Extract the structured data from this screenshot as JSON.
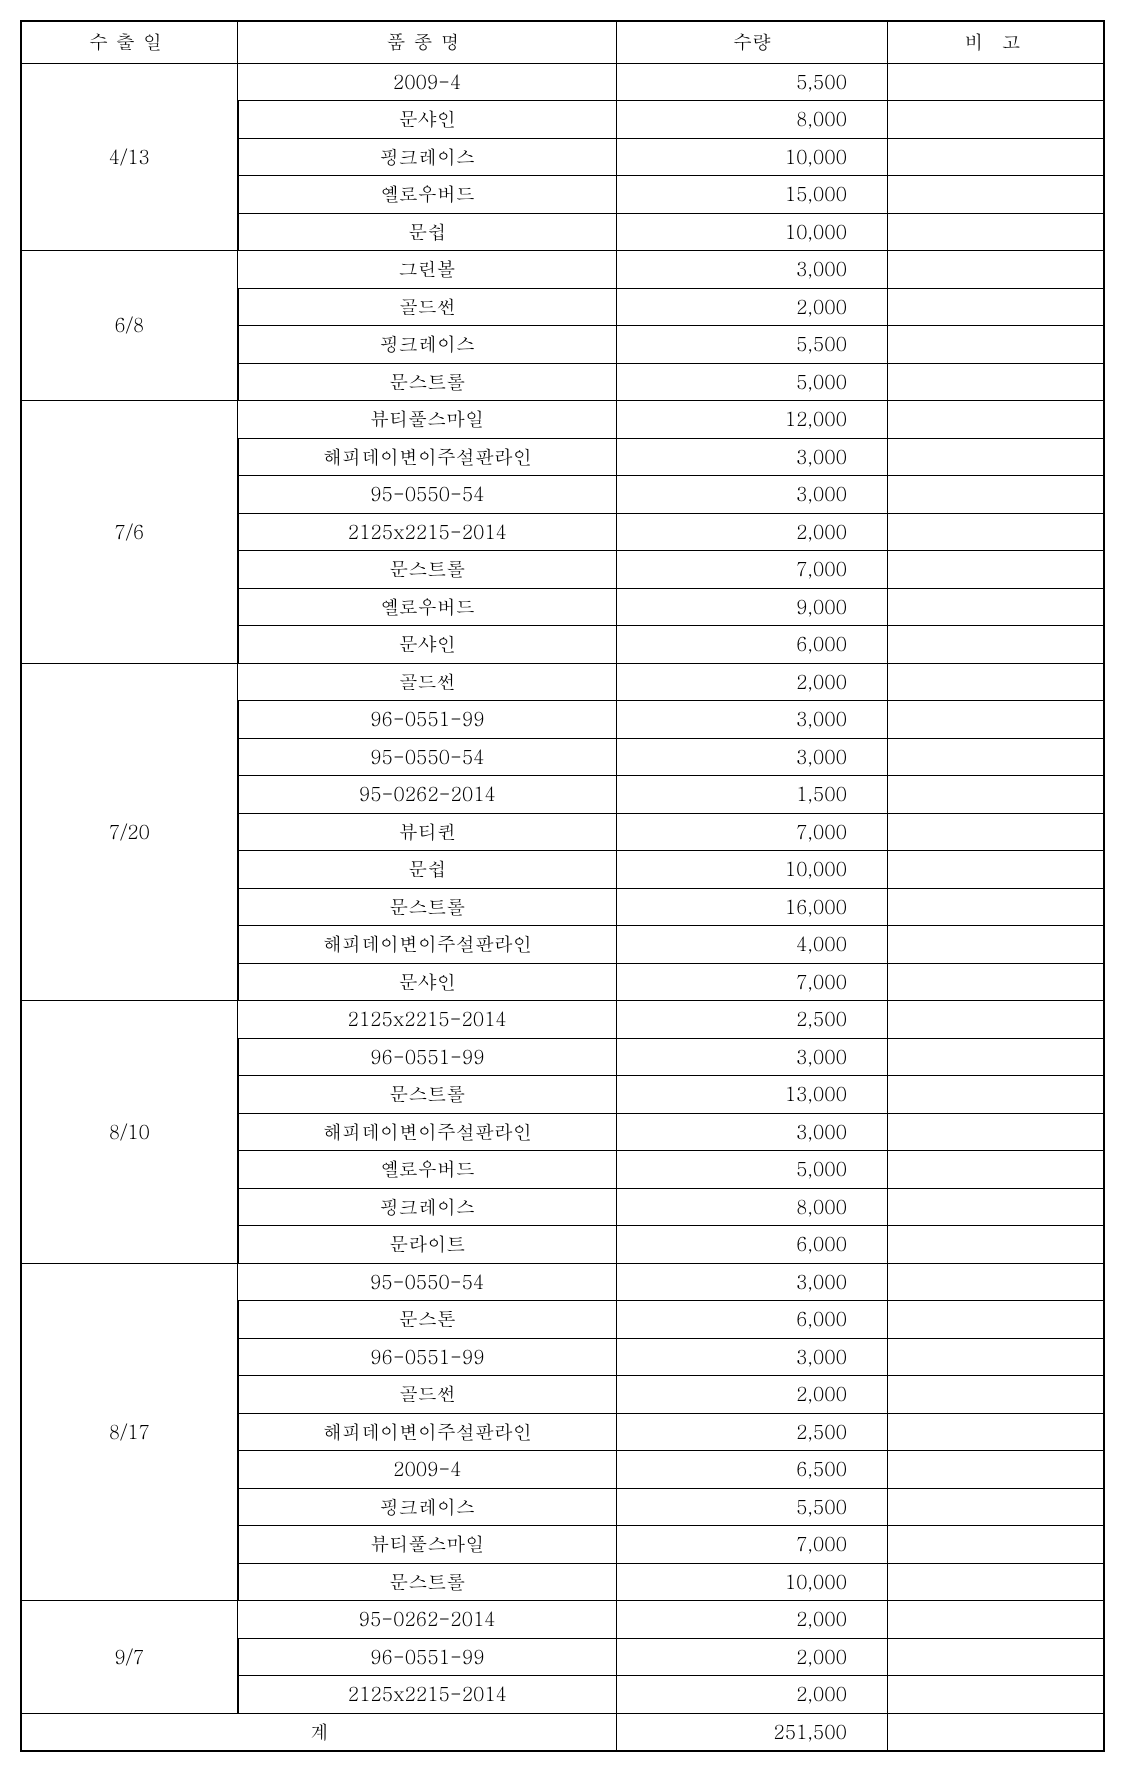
{
  "table": {
    "columns": {
      "date": "수출일",
      "item": "품종명",
      "qty": "수량",
      "notes": "비 고"
    },
    "column_widths_pct": [
      20,
      35,
      25,
      20
    ],
    "font_family": "Batang/BatangChe serif",
    "font_size_pt": 14.5,
    "border_color": "#000000",
    "background_color": "#ffffff",
    "groups": [
      {
        "date": "4/13",
        "rows": [
          {
            "item": "2009-4",
            "qty": "5,500",
            "notes": ""
          },
          {
            "item": "문샤인",
            "qty": "8,000",
            "notes": ""
          },
          {
            "item": "핑크레이스",
            "qty": "10,000",
            "notes": ""
          },
          {
            "item": "옐로우버드",
            "qty": "15,000",
            "notes": ""
          },
          {
            "item": "문쉽",
            "qty": "10,000",
            "notes": ""
          }
        ]
      },
      {
        "date": "6/8",
        "rows": [
          {
            "item": "그린볼",
            "qty": "3,000",
            "notes": ""
          },
          {
            "item": "골드썬",
            "qty": "2,000",
            "notes": ""
          },
          {
            "item": "핑크레이스",
            "qty": "5,500",
            "notes": ""
          },
          {
            "item": "문스트롤",
            "qty": "5,000",
            "notes": ""
          }
        ]
      },
      {
        "date": "7/6",
        "rows": [
          {
            "item": "뷰티풀스마일",
            "qty": "12,000",
            "notes": ""
          },
          {
            "item": "해피데이변이주설판라인",
            "qty": "3,000",
            "notes": ""
          },
          {
            "item": "95-0550-54",
            "qty": "3,000",
            "notes": ""
          },
          {
            "item": "2125x2215-2014",
            "qty": "2,000",
            "notes": ""
          },
          {
            "item": "문스트롤",
            "qty": "7,000",
            "notes": ""
          },
          {
            "item": "옐로우버드",
            "qty": "9,000",
            "notes": ""
          },
          {
            "item": "문샤인",
            "qty": "6,000",
            "notes": ""
          }
        ]
      },
      {
        "date": "7/20",
        "rows": [
          {
            "item": "골드썬",
            "qty": "2,000",
            "notes": ""
          },
          {
            "item": "96-0551-99",
            "qty": "3,000",
            "notes": ""
          },
          {
            "item": "95-0550-54",
            "qty": "3,000",
            "notes": ""
          },
          {
            "item": "95-0262-2014",
            "qty": "1,500",
            "notes": ""
          },
          {
            "item": "뷰티퀸",
            "qty": "7,000",
            "notes": ""
          },
          {
            "item": "문쉽",
            "qty": "10,000",
            "notes": ""
          },
          {
            "item": "문스트롤",
            "qty": "16,000",
            "notes": ""
          },
          {
            "item": "해피데이변이주설판라인",
            "qty": "4,000",
            "notes": ""
          },
          {
            "item": "문샤인",
            "qty": "7,000",
            "notes": ""
          }
        ]
      },
      {
        "date": "8/10",
        "rows": [
          {
            "item": "2125x2215-2014",
            "qty": "2,500",
            "notes": ""
          },
          {
            "item": "96-0551-99",
            "qty": "3,000",
            "notes": ""
          },
          {
            "item": "문스트롤",
            "qty": "13,000",
            "notes": ""
          },
          {
            "item": "해피데이변이주설판라인",
            "qty": "3,000",
            "notes": ""
          },
          {
            "item": "옐로우버드",
            "qty": "5,000",
            "notes": ""
          },
          {
            "item": "핑크레이스",
            "qty": "8,000",
            "notes": ""
          },
          {
            "item": "문라이트",
            "qty": "6,000",
            "notes": ""
          }
        ]
      },
      {
        "date": "8/17",
        "rows": [
          {
            "item": "95-0550-54",
            "qty": "3,000",
            "notes": ""
          },
          {
            "item": "문스톤",
            "qty": "6,000",
            "notes": ""
          },
          {
            "item": "96-0551-99",
            "qty": "3,000",
            "notes": ""
          },
          {
            "item": "골드썬",
            "qty": "2,000",
            "notes": ""
          },
          {
            "item": "해피데이변이주설판라인",
            "qty": "2,500",
            "notes": ""
          },
          {
            "item": "2009-4",
            "qty": "6,500",
            "notes": ""
          },
          {
            "item": "핑크레이스",
            "qty": "5,500",
            "notes": ""
          },
          {
            "item": "뷰티풀스마일",
            "qty": "7,000",
            "notes": ""
          },
          {
            "item": "문스트롤",
            "qty": "10,000",
            "notes": ""
          }
        ]
      },
      {
        "date": "9/7",
        "rows": [
          {
            "item": "95-0262-2014",
            "qty": "2,000",
            "notes": ""
          },
          {
            "item": "96-0551-99",
            "qty": "2,000",
            "notes": ""
          },
          {
            "item": "2125x2215-2014",
            "qty": "2,000",
            "notes": ""
          }
        ]
      }
    ],
    "total": {
      "label": "계",
      "qty": "251,500",
      "notes": ""
    }
  }
}
